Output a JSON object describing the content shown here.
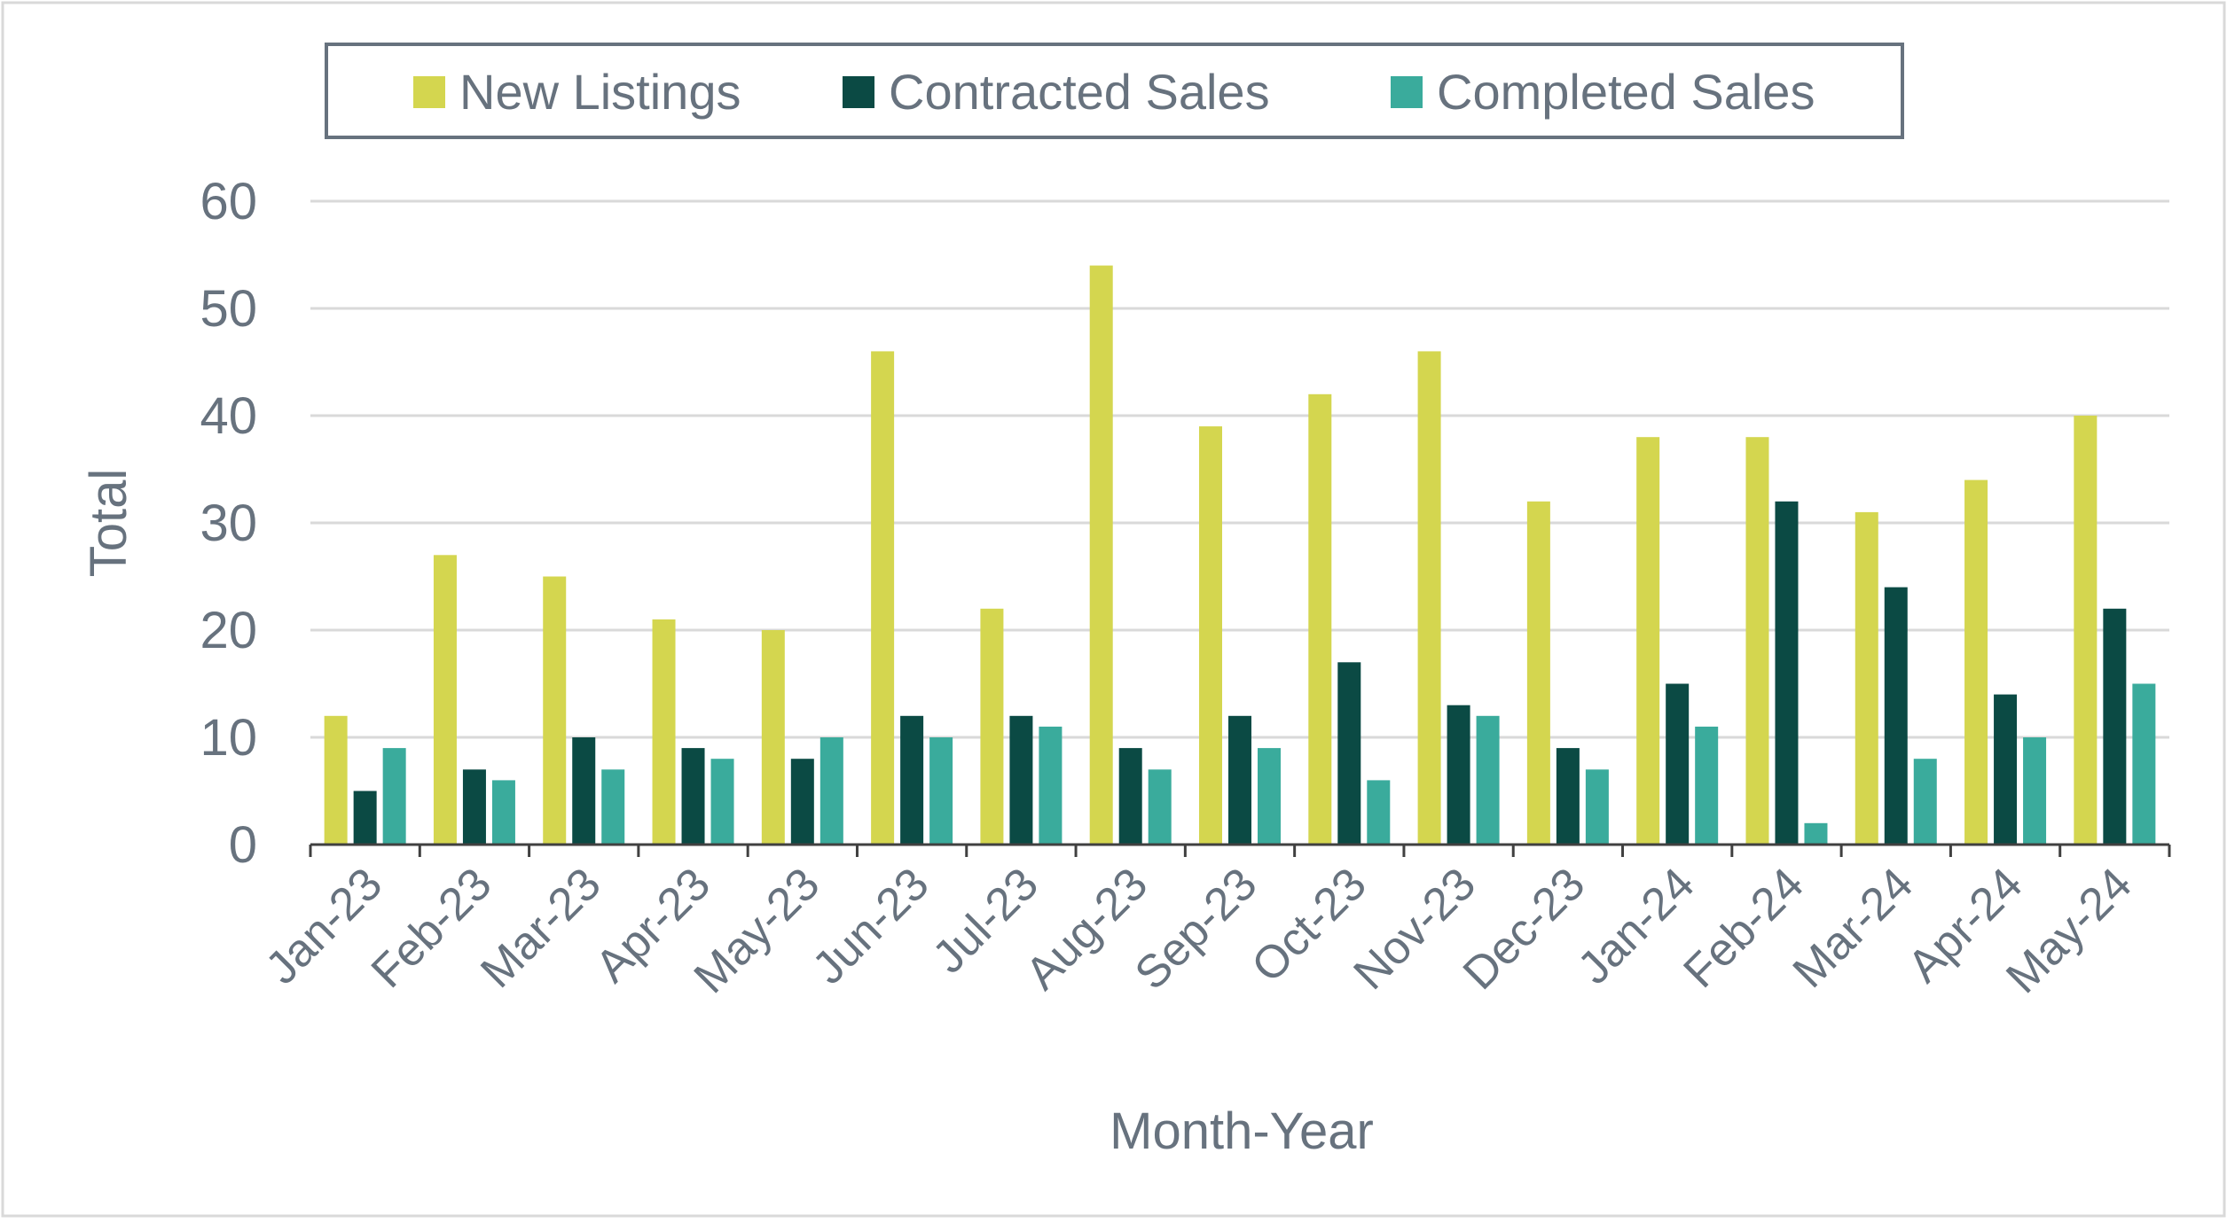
{
  "colors": {
    "new_listings": "#d4d64f",
    "contracted_sales": "#0b4a44",
    "completed_sales": "#3aab9c",
    "grid": "#d9d9d9",
    "axis": "#404040",
    "text": "#67727e",
    "legend_border": "#67727e"
  },
  "chart_data": {
    "type": "bar",
    "title": "",
    "xlabel": "Month-Year",
    "ylabel": "Total",
    "ylim": [
      0,
      60
    ],
    "yticks": [
      0,
      10,
      20,
      30,
      40,
      50,
      60
    ],
    "grid": true,
    "legend_position": "top",
    "categories": [
      "Jan-23",
      "Feb-23",
      "Mar-23",
      "Apr-23",
      "May-23",
      "Jun-23",
      "Jul-23",
      "Aug-23",
      "Sep-23",
      "Oct-23",
      "Nov-23",
      "Dec-23",
      "Jan-24",
      "Feb-24",
      "Mar-24",
      "Apr-24",
      "May-24"
    ],
    "series": [
      {
        "name": "New Listings",
        "color_key": "new_listings",
        "values": [
          12,
          27,
          25,
          21,
          20,
          46,
          22,
          54,
          39,
          42,
          46,
          32,
          38,
          38,
          31,
          34,
          40
        ]
      },
      {
        "name": "Contracted Sales",
        "color_key": "contracted_sales",
        "values": [
          5,
          7,
          10,
          9,
          8,
          12,
          12,
          9,
          12,
          17,
          13,
          9,
          15,
          32,
          24,
          14,
          22
        ]
      },
      {
        "name": "Completed Sales",
        "color_key": "completed_sales",
        "values": [
          9,
          6,
          7,
          8,
          10,
          10,
          11,
          7,
          9,
          6,
          12,
          7,
          11,
          2,
          8,
          10,
          15
        ]
      }
    ]
  }
}
